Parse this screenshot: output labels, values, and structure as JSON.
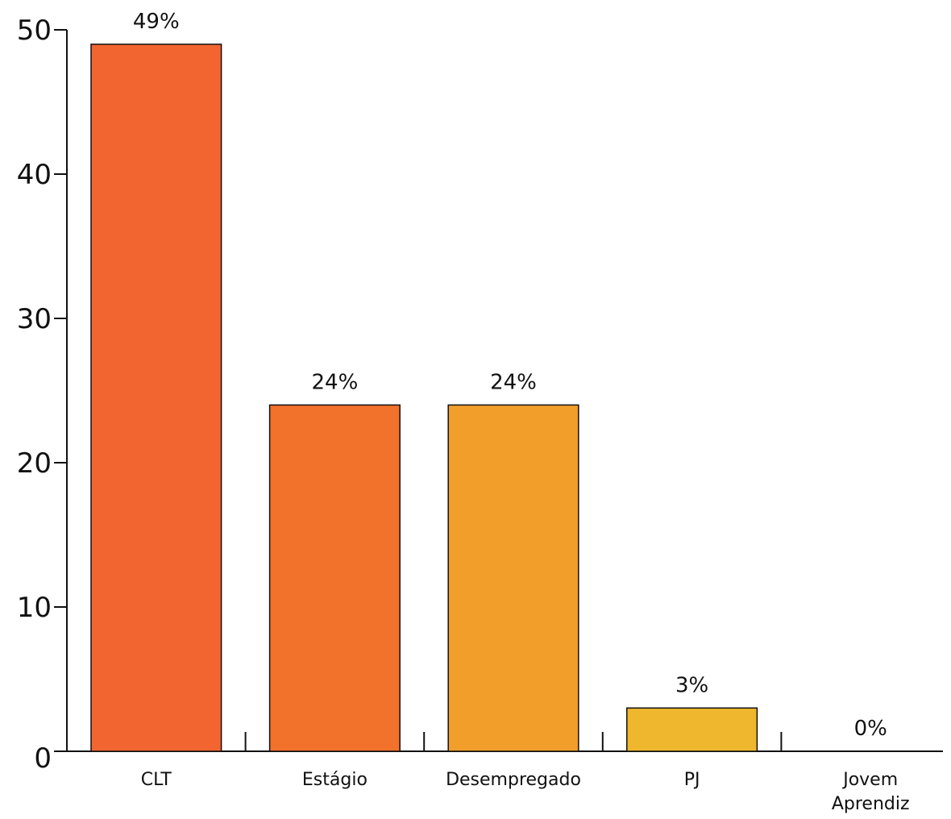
{
  "chart_data": {
    "type": "bar",
    "categories": [
      [
        "CLT"
      ],
      [
        "Estágio"
      ],
      [
        "Desempregado"
      ],
      [
        "PJ"
      ],
      [
        "Jovem",
        "Aprendiz"
      ]
    ],
    "values": [
      49,
      24,
      24,
      3,
      0
    ],
    "value_labels": [
      "49%",
      "24%",
      "24%",
      "3%",
      "0%"
    ],
    "bar_colors": [
      "#f26531",
      "#f2712b",
      "#f29e2b",
      "#eeb72d",
      "#eeb72d"
    ],
    "yticks": [
      0,
      10,
      20,
      30,
      40,
      50
    ],
    "ylim": [
      0,
      50
    ],
    "title": "",
    "xlabel": "",
    "ylabel": "",
    "grid": false,
    "legend": "none"
  }
}
